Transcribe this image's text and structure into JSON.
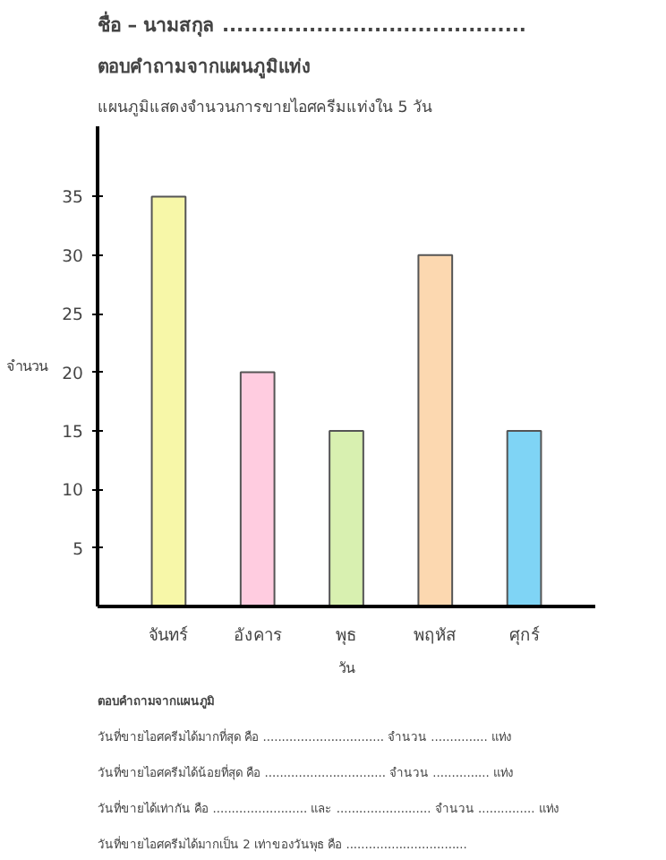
{
  "chart_data": {
    "type": "bar",
    "title": "ตอบคำถามจากแผนภูมิแท่ง",
    "subtitle": "แผนภูมิแสดงจำนวนการขายไอศครีมแท่งใน 5 วัน",
    "xlabel": "วัน",
    "ylabel": "จำนวน",
    "categories": [
      "จันทร์",
      "อังคาร",
      "พุธ",
      "พฤหัส",
      "ศุกร์"
    ],
    "values": [
      35,
      20,
      15,
      30,
      15
    ],
    "colors": [
      "#f7f7a8",
      "#ffcce0",
      "#d8f0b0",
      "#fcd8b0",
      "#7fd4f5"
    ],
    "ylim": [
      0,
      41
    ],
    "yticks": [
      5,
      10,
      15,
      20,
      25,
      30,
      35
    ],
    "grid": false,
    "annotations": [
      "ชื่อ – นามสกุล ..........................................",
      "ตอบคำถามจากแผนภูมิ",
      "วันที่ขายไอศครีมได้มากที่สุด คือ ................................ จำนวน ............... แท่ง",
      "วันที่ขายไอศครีมได้น้อยที่สุด คือ ................................ จำนวน ............... แท่ง",
      "วันที่ขายได้เท่ากัน คือ ......................... และ ......................... จำนวน ............... แท่ง",
      "วันที่ขายไอศครีมได้มากเป็น 2 เท่าของวันพุธ คือ ................................"
    ]
  }
}
